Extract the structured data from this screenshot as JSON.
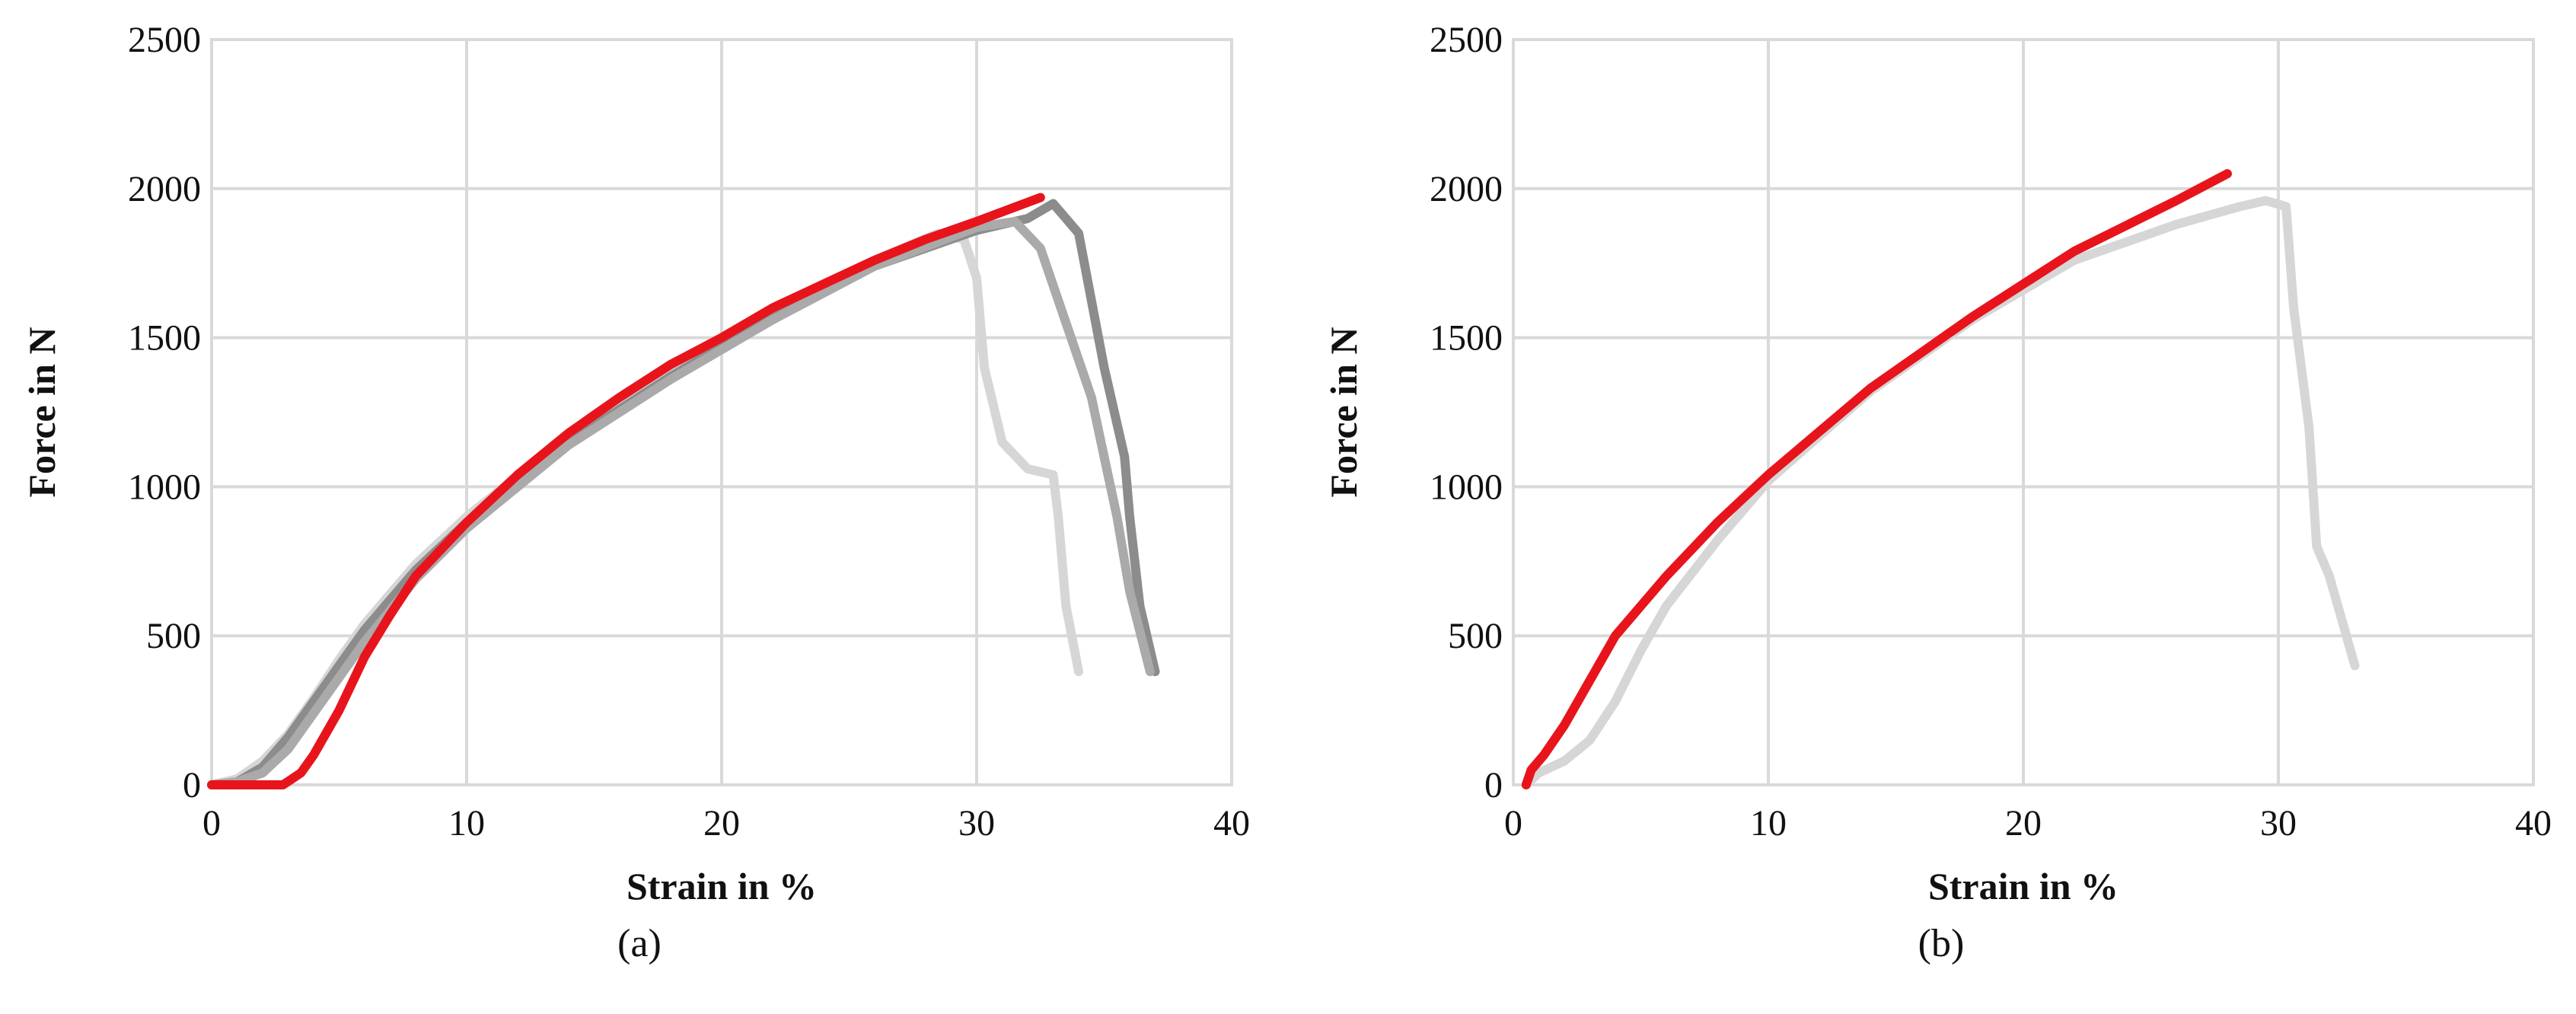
{
  "chart_data": [
    {
      "panel_label": "(a)",
      "type": "line",
      "xlabel": "Strain in %",
      "ylabel": "Force in N",
      "xlim": [
        0,
        40
      ],
      "ylim": [
        0,
        2500
      ],
      "xticks": [
        0,
        10,
        20,
        30,
        40
      ],
      "yticks": [
        0,
        500,
        1000,
        1500,
        2000,
        2500
      ],
      "grid": true,
      "series": [
        {
          "color": "#d6d6d6",
          "stroke_width": 12,
          "points": [
            [
              0,
              0
            ],
            [
              1,
              20
            ],
            [
              2,
              80
            ],
            [
              3,
              170
            ],
            [
              4,
              290
            ],
            [
              5,
              420
            ],
            [
              6,
              540
            ],
            [
              8,
              740
            ],
            [
              10,
              900
            ],
            [
              14,
              1170
            ],
            [
              18,
              1390
            ],
            [
              22,
              1580
            ],
            [
              26,
              1760
            ],
            [
              28.5,
              1850
            ],
            [
              29.5,
              1830
            ],
            [
              30,
              1700
            ],
            [
              30.3,
              1400
            ],
            [
              31,
              1150
            ],
            [
              32,
              1060
            ],
            [
              33,
              1040
            ],
            [
              33.2,
              900
            ],
            [
              33.5,
              600
            ],
            [
              34,
              380
            ]
          ]
        },
        {
          "color": "#8c8c8c",
          "stroke_width": 12,
          "points": [
            [
              0,
              0
            ],
            [
              1,
              10
            ],
            [
              2,
              60
            ],
            [
              3,
              160
            ],
            [
              4,
              280
            ],
            [
              5,
              400
            ],
            [
              6,
              520
            ],
            [
              8,
              720
            ],
            [
              10,
              880
            ],
            [
              14,
              1150
            ],
            [
              18,
              1370
            ],
            [
              22,
              1570
            ],
            [
              26,
              1740
            ],
            [
              30,
              1860
            ],
            [
              32,
              1900
            ],
            [
              33,
              1950
            ],
            [
              34,
              1850
            ],
            [
              35,
              1400
            ],
            [
              35.8,
              1100
            ],
            [
              36,
              900
            ],
            [
              36.4,
              600
            ],
            [
              37,
              380
            ]
          ]
        },
        {
          "color": "#aaaaaa",
          "stroke_width": 12,
          "points": [
            [
              0,
              0
            ],
            [
              1,
              10
            ],
            [
              2,
              40
            ],
            [
              3,
              120
            ],
            [
              4,
              240
            ],
            [
              5,
              360
            ],
            [
              6,
              480
            ],
            [
              8,
              690
            ],
            [
              10,
              860
            ],
            [
              14,
              1140
            ],
            [
              18,
              1360
            ],
            [
              22,
              1560
            ],
            [
              26,
              1740
            ],
            [
              30,
              1870
            ],
            [
              31.5,
              1890
            ],
            [
              32.5,
              1800
            ],
            [
              33.5,
              1550
            ],
            [
              34.5,
              1300
            ],
            [
              35,
              1100
            ],
            [
              35.5,
              900
            ],
            [
              36,
              650
            ],
            [
              36.8,
              380
            ]
          ]
        },
        {
          "color": "#e8141c",
          "stroke_width": 12,
          "points": [
            [
              0,
              0
            ],
            [
              2.8,
              0
            ],
            [
              3.5,
              40
            ],
            [
              4,
              100
            ],
            [
              5,
              250
            ],
            [
              6,
              430
            ],
            [
              7,
              570
            ],
            [
              8,
              700
            ],
            [
              10,
              880
            ],
            [
              12,
              1040
            ],
            [
              14,
              1180
            ],
            [
              16,
              1300
            ],
            [
              18,
              1410
            ],
            [
              20,
              1500
            ],
            [
              22,
              1600
            ],
            [
              24,
              1680
            ],
            [
              26,
              1760
            ],
            [
              28,
              1830
            ],
            [
              30,
              1890
            ],
            [
              32.5,
              1970
            ]
          ]
        }
      ]
    },
    {
      "panel_label": "(b)",
      "type": "line",
      "xlabel": "Strain in %",
      "ylabel": "Force in N",
      "xlim": [
        0,
        40
      ],
      "ylim": [
        0,
        2500
      ],
      "xticks": [
        0,
        10,
        20,
        30,
        40
      ],
      "yticks": [
        0,
        500,
        1000,
        1500,
        2000,
        2500
      ],
      "grid": true,
      "series": [
        {
          "color": "#d6d6d6",
          "stroke_width": 12,
          "points": [
            [
              0.5,
              0
            ],
            [
              1,
              40
            ],
            [
              2,
              80
            ],
            [
              3,
              150
            ],
            [
              4,
              280
            ],
            [
              5,
              450
            ],
            [
              6,
              600
            ],
            [
              8,
              820
            ],
            [
              10,
              1020
            ],
            [
              14,
              1320
            ],
            [
              18,
              1560
            ],
            [
              22,
              1760
            ],
            [
              26,
              1880
            ],
            [
              28.5,
              1940
            ],
            [
              29.5,
              1960
            ],
            [
              30.3,
              1940
            ],
            [
              30.6,
              1600
            ],
            [
              31.2,
              1200
            ],
            [
              31.5,
              800
            ],
            [
              32,
              700
            ],
            [
              32.5,
              550
            ],
            [
              33,
              400
            ]
          ]
        },
        {
          "color": "#e8141c",
          "stroke_width": 12,
          "points": [
            [
              0.5,
              0
            ],
            [
              0.7,
              50
            ],
            [
              1.2,
              100
            ],
            [
              2,
              200
            ],
            [
              3,
              350
            ],
            [
              4,
              500
            ],
            [
              5,
              600
            ],
            [
              6,
              700
            ],
            [
              8,
              880
            ],
            [
              10,
              1040
            ],
            [
              14,
              1330
            ],
            [
              18,
              1570
            ],
            [
              22,
              1790
            ],
            [
              26,
              1960
            ],
            [
              28,
              2050
            ]
          ]
        }
      ]
    }
  ]
}
